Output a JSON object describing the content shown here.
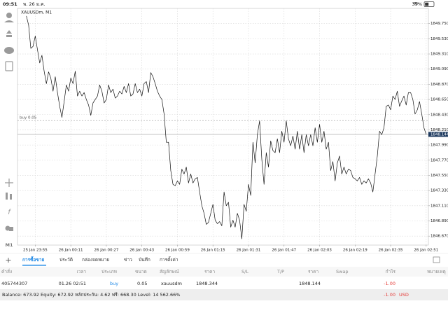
{
  "status_bar": {
    "time": "09:51",
    "date": "พ. 26 ม.ค.",
    "battery": "39%"
  },
  "left_toolbar": {
    "timeframe": "M1"
  },
  "chart_data": {
    "type": "line",
    "title": "XAUUSDm, M1",
    "color": "#111111",
    "grid": true,
    "values": [
      1849.86,
      1849.73,
      1849.39,
      1849.42,
      1849.57,
      1849.37,
      1849.18,
      1849.29,
      1849.06,
      1848.88,
      1849.05,
      1848.96,
      1848.77,
      1848.98,
      1848.75,
      1848.55,
      1848.39,
      1848.62,
      1848.86,
      1848.77,
      1848.96,
      1848.88,
      1849.06,
      1848.7,
      1848.77,
      1848.7,
      1848.75,
      1848.65,
      1848.57,
      1848.42,
      1848.6,
      1848.65,
      1848.7,
      1848.86,
      1848.77,
      1848.6,
      1848.65,
      1848.86,
      1848.75,
      1848.8,
      1848.67,
      1848.7,
      1848.77,
      1848.73,
      1848.84,
      1848.75,
      1848.88,
      1848.7,
      1848.73,
      1848.88,
      1848.75,
      1848.8,
      1848.7,
      1848.88,
      1848.91,
      1848.75,
      1849.04,
      1848.98,
      1848.88,
      1848.77,
      1848.7,
      1848.65,
      1848.44,
      1848.03,
      1848.03,
      1847.62,
      1847.42,
      1847.4,
      1847.47,
      1847.42,
      1847.64,
      1847.57,
      1847.67,
      1847.44,
      1847.57,
      1847.44,
      1847.5,
      1847.52,
      1847.31,
      1847.11,
      1847.0,
      1846.84,
      1846.87,
      1847.0,
      1847.13,
      1846.9,
      1846.85,
      1846.88,
      1846.82,
      1847.31,
      1847.11,
      1847.16,
      1846.8,
      1846.9,
      1846.8,
      1847.0,
      1846.9,
      1846.63,
      1847.13,
      1847.03,
      1847.42,
      1847.26,
      1848.03,
      1847.73,
      1848.14,
      1848.34,
      1847.78,
      1847.42,
      1847.88,
      1847.67,
      1848.05,
      1847.91,
      1847.88,
      1848.08,
      1847.88,
      1848.19,
      1848.03,
      1848.34,
      1848.08,
      1847.98,
      1848.12,
      1847.93,
      1848.19,
      1847.93,
      1848.14,
      1847.88,
      1848.14,
      1847.98,
      1848.14,
      1847.98,
      1848.24,
      1848.03,
      1848.29,
      1848.03,
      1848.19,
      1847.93,
      1848.03,
      1847.62,
      1847.75,
      1847.47,
      1847.73,
      1847.83,
      1847.57,
      1847.67,
      1847.57,
      1847.64,
      1847.62,
      1847.52,
      1847.5,
      1847.47,
      1847.52,
      1847.42,
      1847.47,
      1847.44,
      1847.5,
      1847.44,
      1847.31,
      1847.57,
      1847.83,
      1848.19,
      1848.14,
      1848.24,
      1848.55,
      1848.57,
      1848.5,
      1848.7,
      1848.65,
      1848.77,
      1848.55,
      1848.63,
      1848.7,
      1848.57,
      1848.75,
      1848.75,
      1848.65,
      1848.44,
      1848.5,
      1848.62,
      1848.44,
      1848.24,
      1848.144
    ],
    "xlim": [
      -4,
      181
    ],
    "xticks": [
      {
        "value": 4,
        "label": "25 Jan 23:55"
      },
      {
        "value": 20,
        "label": "26 Jan 00:11"
      },
      {
        "value": 36,
        "label": "26 Jan 00:27"
      },
      {
        "value": 52,
        "label": "26 Jan 00:43"
      },
      {
        "value": 68,
        "label": "26 Jan 00:59"
      },
      {
        "value": 84,
        "label": "26 Jan 01:15"
      },
      {
        "value": 100,
        "label": "26 Jan 01:31"
      },
      {
        "value": 116,
        "label": "26 Jan 01:47"
      },
      {
        "value": 132,
        "label": "26 Jan 02:03"
      },
      {
        "value": 148,
        "label": "26 Jan 02:19"
      },
      {
        "value": 164,
        "label": "26 Jan 02:35"
      },
      {
        "value": 180,
        "label": "26 Jan 02:51"
      }
    ],
    "ylim": [
      1846.54,
      1849.97
    ],
    "yticks": [
      {
        "value": 1849.75,
        "label": "1849.750"
      },
      {
        "value": 1849.53,
        "label": "1849.530"
      },
      {
        "value": 1849.31,
        "label": "1849.310"
      },
      {
        "value": 1849.09,
        "label": "1849.090"
      },
      {
        "value": 1848.87,
        "label": "1848.870"
      },
      {
        "value": 1848.65,
        "label": "1848.650"
      },
      {
        "value": 1848.43,
        "label": "1848.430"
      },
      {
        "value": 1848.21,
        "label": "1848.210"
      },
      {
        "value": 1847.99,
        "label": "1847.990"
      },
      {
        "value": 1847.77,
        "label": "1847.770"
      },
      {
        "value": 1847.55,
        "label": "1847.550"
      },
      {
        "value": 1847.33,
        "label": "1847.330"
      },
      {
        "value": 1847.11,
        "label": "1847.110"
      },
      {
        "value": 1846.89,
        "label": "1846.890"
      },
      {
        "value": 1846.67,
        "label": "1846.670"
      }
    ],
    "order_line": {
      "label": "buy 0.05",
      "value": 1848.344
    },
    "last_price": 1848.144
  },
  "tabs": [
    "การซื้อขาย",
    "ประวัติ",
    "กล่องจดหมาย",
    "ข่าว",
    "บันทึก",
    "การตั้งค่า"
  ],
  "table": {
    "headers": [
      "คำสั่ง",
      "เวลา",
      "ประเภท",
      "ขนาด",
      "สัญลักษณ์",
      "ราคา",
      "S/L",
      "T/P",
      "ราคา",
      "Swap",
      "กำไร",
      "หมายเหตุ"
    ],
    "rows": [
      {
        "order": "405744307",
        "time": "01.26 02:51",
        "type": "buy",
        "volume": "0.05",
        "symbol": "xauusdm",
        "price": "1848.344",
        "current_price": "1848.144",
        "profit": "-1.00"
      }
    ]
  },
  "footer": {
    "balance": "Balance: 673.92 Equity: 672.92 หลักประกัน: 4.62 ฟรี: 668.30 Level: 14 562.66%",
    "profit": "-1.00",
    "currency": "USD"
  }
}
